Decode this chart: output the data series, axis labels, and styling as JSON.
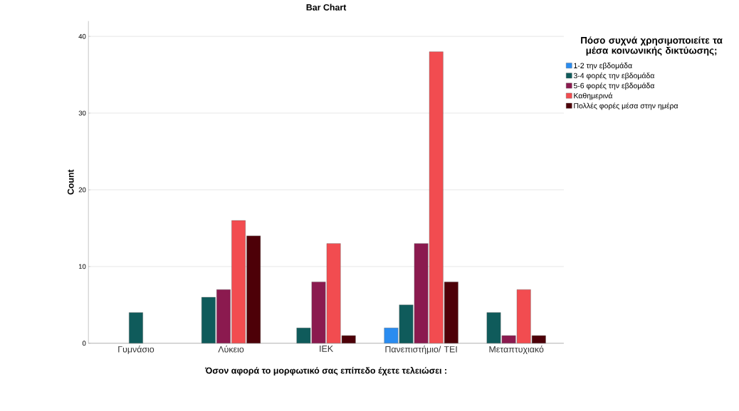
{
  "chart_data": {
    "type": "bar",
    "title": "Bar Chart",
    "xlabel": "Όσον αφορά το μορφωτικό σας επίπεδο έχετε τελειώσει :",
    "ylabel": "Count",
    "legend_title": "Πόσο συχνά χρησιμοποιείτε τα μέσα κοινωνικής δικτύωσης;",
    "categories": [
      "Γυμνάσιο",
      "Λύκειο",
      "ΙΕΚ",
      "Πανεπιστήμιο/ ΤΕΙ",
      "Μεταπτυχιακό"
    ],
    "series": [
      {
        "name": "1-2 την εβδομάδα",
        "color": "#2a8cf0",
        "values": [
          null,
          null,
          null,
          2,
          null
        ]
      },
      {
        "name": "3-4 φορές την εβδομάδα",
        "color": "#0f5b5b",
        "values": [
          4,
          6,
          2,
          5,
          4
        ]
      },
      {
        "name": "5-6 φορές την εβδομάδα",
        "color": "#8b1a4f",
        "values": [
          null,
          7,
          8,
          13,
          1
        ]
      },
      {
        "name": "Καθημερινά",
        "color": "#f24c50",
        "values": [
          null,
          16,
          13,
          38,
          7
        ]
      },
      {
        "name": "Πολλές φορές μέσα στην ημέρα",
        "color": "#4d0008",
        "values": [
          null,
          14,
          1,
          8,
          1
        ]
      }
    ],
    "ylim": [
      0,
      42
    ],
    "yticks": [
      0,
      10,
      20,
      30,
      40
    ],
    "grid": "y",
    "legend": "right"
  }
}
